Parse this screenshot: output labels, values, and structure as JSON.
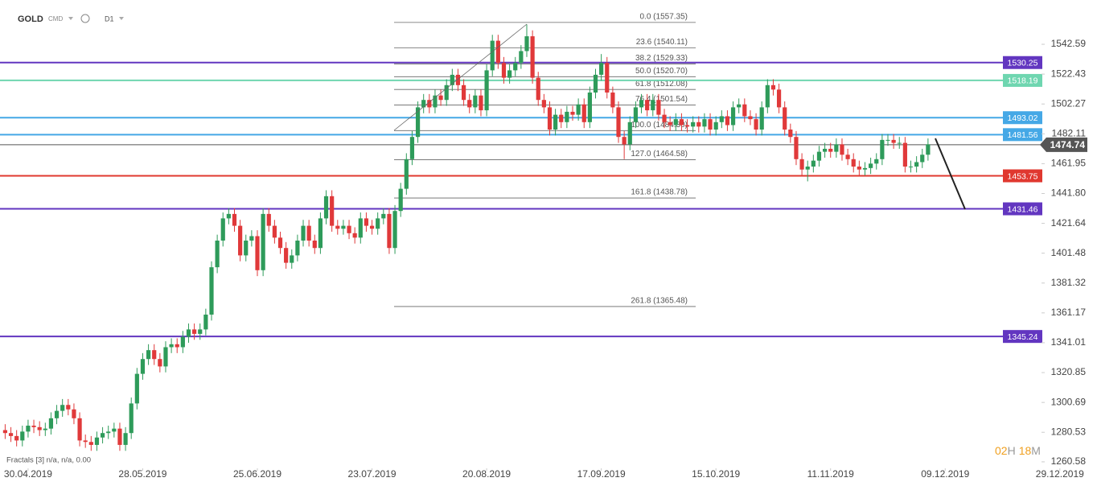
{
  "chart_data": {
    "type": "candlestick",
    "symbol": "GOLD",
    "market": "CMD",
    "timeframe": "D1",
    "indicator": "Fractals  [3]  n/a, n/a,  0.00",
    "countdown": {
      "hours": "02",
      "hours_unit": "H",
      "minutes": "18",
      "minutes_unit": "M"
    },
    "up_color": "#2e9b5a",
    "down_color": "#e0393a",
    "xlim": [
      -4.9,
      176.8
    ],
    "xticks": [
      {
        "value": 0,
        "label": "30.04.2019"
      },
      {
        "value": 20,
        "label": "28.05.2019"
      },
      {
        "value": 40,
        "label": "25.06.2019"
      },
      {
        "value": 60,
        "label": "23.07.2019"
      },
      {
        "value": 80,
        "label": "20.08.2019"
      },
      {
        "value": 100,
        "label": "17.09.2019"
      },
      {
        "value": 120,
        "label": "15.10.2019"
      },
      {
        "value": 140,
        "label": "11.11.2019"
      },
      {
        "value": 160,
        "label": "09.12.2019"
      },
      {
        "value": 180,
        "label": "29.12.2019"
      }
    ],
    "ylim": [
      1256.2,
      1572.5
    ],
    "yticks": [
      1542.59,
      1522.43,
      1502.27,
      1482.11,
      1461.95,
      {
        "value": 1441.8,
        "label": "1441.80"
      },
      1421.64,
      1401.48,
      1381.32,
      1361.17,
      1341.01,
      1320.85,
      1300.69,
      1280.53,
      1260.58
    ],
    "last_price": 1474.74,
    "levels": [
      {
        "value": 1530.25,
        "color": "#6236c0"
      },
      {
        "value": 1518.19,
        "color": "#6fd6b0"
      },
      {
        "value": 1493.02,
        "color": "#45a8e6"
      },
      {
        "value": 1481.56,
        "color": "#45a8e6"
      },
      {
        "value": 1453.75,
        "color": "#e0382f"
      },
      {
        "value": 1431.46,
        "color": "#6236c0"
      },
      {
        "value": 1345.24,
        "color": "#6236c0"
      }
    ],
    "fib_levels": [
      {
        "value": 1557.35,
        "label": "0.0 (1557.35)"
      },
      {
        "value": 1540.11,
        "label": "23.6 (1540.11)"
      },
      {
        "value": 1529.33,
        "label": "38.2 (1529.33)"
      },
      {
        "value": 1520.7,
        "label": "50.0 (1520.70)"
      },
      {
        "value": 1512.08,
        "label": "61.8 (1512.08)"
      },
      {
        "value": 1501.54,
        "label": "76.4 (1501.54)"
      },
      {
        "value": 1484.3,
        "label": "100.0 (1484.30)"
      },
      {
        "value": 1464.58,
        "label": "127.0 (1464.58)"
      },
      {
        "value": 1438.78,
        "label": "161.8 (1438.78)"
      },
      {
        "value": 1365.48,
        "label": "261.8 (1365.48)"
      }
    ],
    "x": [
      -4,
      -3,
      -2,
      -1,
      0,
      1,
      2,
      3,
      4,
      5,
      6,
      7,
      8,
      9,
      10,
      11,
      12,
      13,
      14,
      15,
      16,
      17,
      18,
      19,
      20,
      21,
      22,
      23,
      24,
      25,
      26,
      27,
      28,
      29,
      30,
      31,
      32,
      33,
      34,
      35,
      36,
      37,
      38,
      39,
      40,
      41,
      42,
      43,
      44,
      45,
      46,
      47,
      48,
      49,
      50,
      51,
      52,
      53,
      54,
      55,
      56,
      57,
      58,
      59,
      60,
      61,
      62,
      63,
      64,
      65,
      66,
      67,
      68,
      69,
      70,
      71,
      72,
      73,
      74,
      75,
      76,
      77,
      78,
      79,
      80,
      81,
      82,
      83,
      84,
      85,
      86,
      87,
      88,
      89,
      90,
      91,
      92,
      93,
      94,
      95,
      96,
      97,
      98,
      99,
      100,
      101,
      102,
      103,
      104,
      105,
      106,
      107,
      108,
      109,
      110,
      111,
      112,
      113,
      114,
      115,
      116,
      117,
      118,
      119,
      120,
      121,
      122,
      123,
      124,
      125,
      126,
      127,
      128,
      129,
      130,
      131,
      132,
      133,
      134,
      135,
      136,
      137,
      138,
      139,
      140,
      141,
      142,
      143,
      144,
      145,
      146,
      147,
      148,
      149,
      150,
      151,
      152,
      153,
      154,
      155,
      156,
      157
    ],
    "open": [
      1282,
      1280,
      1278,
      1275,
      1281,
      1285,
      1284,
      1282,
      1283,
      1290,
      1295,
      1299,
      1296,
      1290,
      1275,
      1274,
      1272,
      1277,
      1280,
      1281,
      1283,
      1272,
      1280,
      1300,
      1320,
      1330,
      1336,
      1330,
      1325,
      1338,
      1340,
      1338,
      1345,
      1350,
      1347,
      1350,
      1360,
      1392,
      1410,
      1425,
      1428,
      1420,
      1400,
      1410,
      1413,
      1390,
      1428,
      1420,
      1412,
      1405,
      1395,
      1400,
      1410,
      1420,
      1410,
      1405,
      1425,
      1440,
      1420,
      1418,
      1420,
      1415,
      1412,
      1425,
      1420,
      1418,
      1425,
      1428,
      1405,
      1430,
      1445,
      1465,
      1480,
      1500,
      1505,
      1500,
      1508,
      1505,
      1515,
      1522,
      1515,
      1505,
      1500,
      1508,
      1498,
      1525,
      1545,
      1530,
      1520,
      1525,
      1530,
      1538,
      1548,
      1520,
      1505,
      1500,
      1485,
      1495,
      1490,
      1497,
      1495,
      1502,
      1490,
      1510,
      1522,
      1530,
      1510,
      1500,
      1480,
      1475,
      1490,
      1500,
      1505,
      1498,
      1505,
      1495,
      1490,
      1488,
      1492,
      1488,
      1487,
      1490,
      1487,
      1492,
      1485,
      1490,
      1494,
      1488,
      1500,
      1502,
      1494,
      1492,
      1485,
      1500,
      1515,
      1512,
      1500,
      1485,
      1480,
      1465,
      1458,
      1460,
      1464,
      1470,
      1472,
      1470,
      1475,
      1468,
      1465,
      1460,
      1458,
      1459,
      1462,
      1465,
      1478,
      1478,
      1476,
      1476,
      1460,
      1460,
      1463,
      1468
    ],
    "high": [
      1286,
      1284,
      1282,
      1285,
      1289,
      1289,
      1288,
      1287,
      1294,
      1299,
      1303,
      1303,
      1300,
      1294,
      1279,
      1278,
      1281,
      1284,
      1285,
      1287,
      1287,
      1284,
      1304,
      1324,
      1334,
      1340,
      1340,
      1334,
      1342,
      1344,
      1344,
      1349,
      1354,
      1354,
      1354,
      1364,
      1396,
      1414,
      1429,
      1432,
      1432,
      1424,
      1414,
      1417,
      1417,
      1432,
      1432,
      1424,
      1416,
      1409,
      1404,
      1414,
      1424,
      1424,
      1414,
      1429,
      1444,
      1444,
      1424,
      1424,
      1424,
      1419,
      1429,
      1429,
      1424,
      1429,
      1432,
      1432,
      1434,
      1449,
      1469,
      1484,
      1504,
      1509,
      1509,
      1512,
      1512,
      1519,
      1526,
      1526,
      1519,
      1509,
      1512,
      1512,
      1529,
      1549,
      1549,
      1534,
      1529,
      1534,
      1542,
      1556,
      1552,
      1524,
      1509,
      1504,
      1499,
      1499,
      1501,
      1501,
      1506,
      1506,
      1514,
      1526,
      1536,
      1534,
      1514,
      1504,
      1484,
      1494,
      1504,
      1509,
      1509,
      1509,
      1509,
      1499,
      1494,
      1496,
      1496,
      1492,
      1494,
      1494,
      1496,
      1496,
      1494,
      1498,
      1498,
      1504,
      1506,
      1506,
      1498,
      1496,
      1504,
      1519,
      1519,
      1516,
      1504,
      1489,
      1484,
      1469,
      1464,
      1468,
      1474,
      1476,
      1476,
      1479,
      1479,
      1472,
      1469,
      1464,
      1463,
      1466,
      1469,
      1482,
      1482,
      1482,
      1480,
      1480,
      1464,
      1467,
      1472,
      1479
    ],
    "low": [
      1276,
      1274,
      1271,
      1271,
      1277,
      1280,
      1278,
      1278,
      1279,
      1286,
      1291,
      1292,
      1286,
      1271,
      1270,
      1268,
      1268,
      1273,
      1276,
      1277,
      1268,
      1268,
      1276,
      1296,
      1316,
      1326,
      1326,
      1321,
      1321,
      1334,
      1334,
      1334,
      1341,
      1343,
      1343,
      1346,
      1356,
      1388,
      1406,
      1421,
      1416,
      1396,
      1396,
      1406,
      1386,
      1386,
      1416,
      1408,
      1401,
      1391,
      1391,
      1396,
      1406,
      1406,
      1401,
      1401,
      1421,
      1416,
      1414,
      1414,
      1411,
      1408,
      1408,
      1416,
      1414,
      1414,
      1421,
      1401,
      1401,
      1426,
      1441,
      1461,
      1476,
      1496,
      1496,
      1496,
      1501,
      1501,
      1511,
      1511,
      1501,
      1496,
      1496,
      1494,
      1494,
      1521,
      1526,
      1516,
      1516,
      1521,
      1526,
      1534,
      1516,
      1501,
      1496,
      1481,
      1481,
      1486,
      1486,
      1491,
      1491,
      1486,
      1486,
      1506,
      1518,
      1506,
      1496,
      1476,
      1465,
      1471,
      1486,
      1496,
      1494,
      1494,
      1491,
      1486,
      1484,
      1484,
      1484,
      1483,
      1483,
      1483,
      1483,
      1481,
      1481,
      1486,
      1484,
      1484,
      1496,
      1490,
      1488,
      1481,
      1481,
      1496,
      1508,
      1496,
      1481,
      1476,
      1461,
      1454,
      1450,
      1456,
      1460,
      1466,
      1466,
      1466,
      1464,
      1461,
      1456,
      1454,
      1454,
      1455,
      1458,
      1461,
      1474,
      1472,
      1472,
      1456,
      1456,
      1456,
      1459,
      1464
    ],
    "close": [
      1280,
      1278,
      1275,
      1281,
      1285,
      1284,
      1282,
      1283,
      1290,
      1295,
      1299,
      1296,
      1290,
      1275,
      1274,
      1272,
      1277,
      1280,
      1281,
      1283,
      1272,
      1280,
      1300,
      1320,
      1330,
      1336,
      1330,
      1325,
      1338,
      1340,
      1338,
      1345,
      1350,
      1347,
      1350,
      1360,
      1392,
      1410,
      1425,
      1428,
      1420,
      1400,
      1410,
      1413,
      1390,
      1428,
      1420,
      1412,
      1405,
      1395,
      1400,
      1410,
      1420,
      1410,
      1405,
      1425,
      1440,
      1420,
      1418,
      1420,
      1415,
      1412,
      1425,
      1420,
      1418,
      1425,
      1428,
      1405,
      1430,
      1445,
      1465,
      1480,
      1500,
      1505,
      1500,
      1508,
      1505,
      1515,
      1522,
      1515,
      1505,
      1500,
      1508,
      1498,
      1525,
      1545,
      1530,
      1520,
      1525,
      1530,
      1538,
      1548,
      1520,
      1505,
      1500,
      1485,
      1495,
      1490,
      1497,
      1495,
      1502,
      1490,
      1510,
      1522,
      1530,
      1510,
      1500,
      1480,
      1475,
      1490,
      1500,
      1505,
      1498,
      1505,
      1495,
      1490,
      1488,
      1492,
      1488,
      1487,
      1490,
      1487,
      1492,
      1485,
      1490,
      1494,
      1488,
      1500,
      1502,
      1494,
      1492,
      1485,
      1500,
      1515,
      1512,
      1500,
      1485,
      1480,
      1465,
      1458,
      1460,
      1464,
      1470,
      1472,
      1470,
      1475,
      1468,
      1465,
      1460,
      1458,
      1459,
      1462,
      1465,
      1478,
      1478,
      1476,
      1476,
      1460,
      1460,
      1463,
      1468,
      1475
    ]
  }
}
